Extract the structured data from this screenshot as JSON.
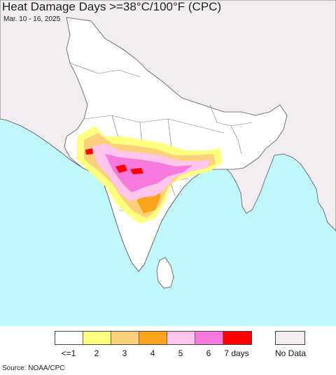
{
  "header": {
    "title": "Heat Damage Days >=38°C/100°F (CPC)",
    "subtitle": "Mar. 10 - 16, 2025"
  },
  "colors": {
    "ocean": "#bff7fb",
    "land_other": "#f1edf1",
    "land_study": "#ffffff",
    "border": "#555555"
  },
  "legend": {
    "items": [
      {
        "label": "<=1",
        "color": "#ffffff"
      },
      {
        "label": "2",
        "color": "#ffff80"
      },
      {
        "label": "3",
        "color": "#fdd17c"
      },
      {
        "label": "4",
        "color": "#fca51c"
      },
      {
        "label": "5",
        "color": "#ffc5ea"
      },
      {
        "label": "6",
        "color": "#f779dd"
      },
      {
        "label": "7 days",
        "color": "#ff0000"
      }
    ],
    "no_data": {
      "label": "No Data",
      "color": "#f1edf1"
    }
  },
  "footer": {
    "source": "Source: NOAA/CPC"
  }
}
